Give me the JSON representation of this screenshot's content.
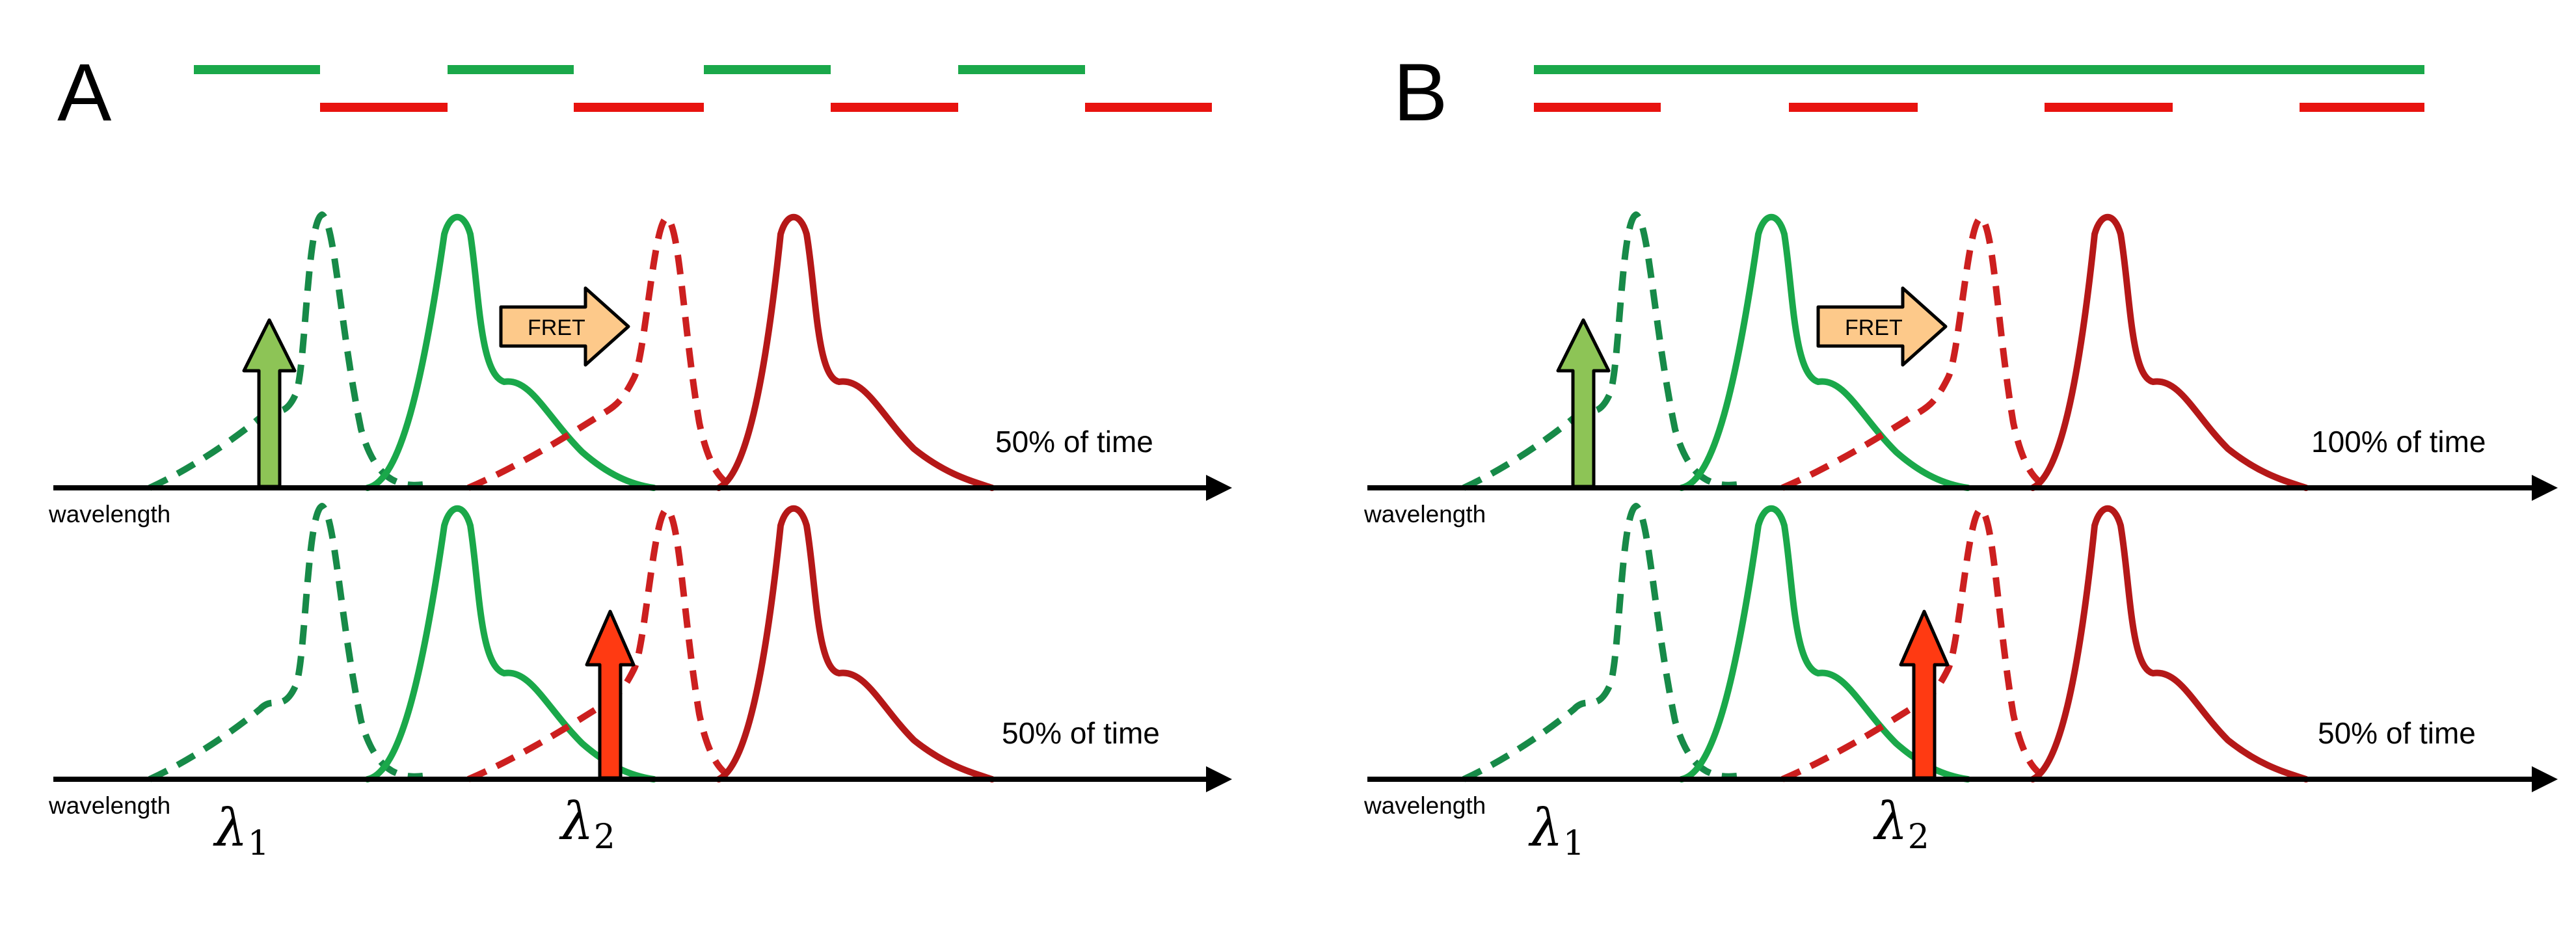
{
  "panels": [
    {
      "letter": "A",
      "green_schedule": "alternating",
      "upper_time": "50% of time",
      "lower_time": "50% of time"
    },
    {
      "letter": "B",
      "green_schedule": "continuous",
      "upper_time": "100% of time",
      "lower_time": "50% of time"
    }
  ],
  "axis_label": "wavelength",
  "fret_label": "FRET",
  "lambda_symbol": "λ",
  "lambda1_sub": "1",
  "lambda2_sub": "2",
  "colors": {
    "green_donor": "#1aa84a",
    "green_dashed": "#178a48",
    "red_acceptor": "#b51818",
    "red_dashed": "#cc1f1f",
    "excitation_green": "#8dc456",
    "excitation_red": "#ff3a12",
    "fret_arrow": "#fdc98a",
    "bar_green": "#1aa84a",
    "bar_red": "#e8130f"
  }
}
